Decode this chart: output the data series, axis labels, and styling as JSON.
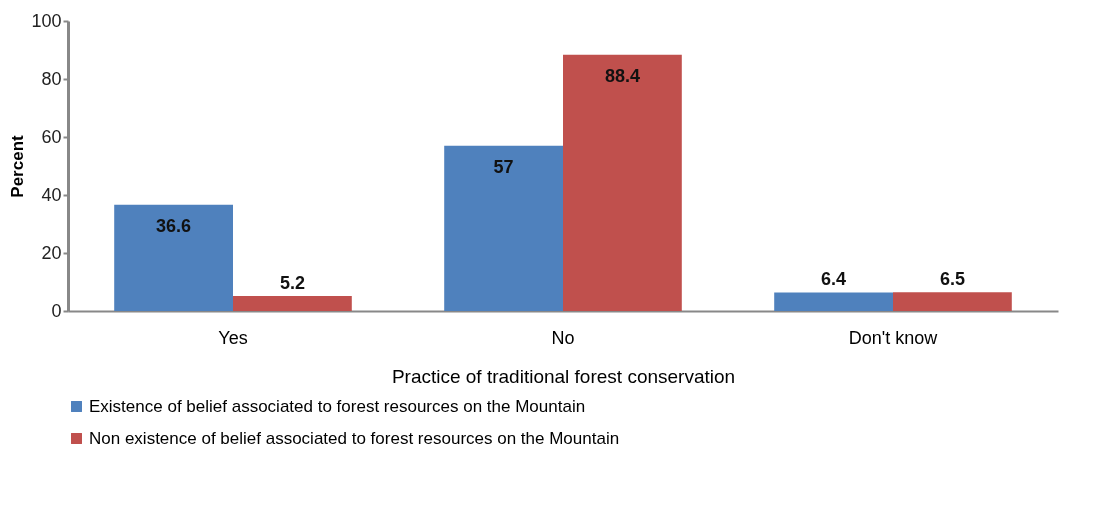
{
  "chart_data": {
    "type": "bar",
    "xlabel": "Practice of traditional forest conservation",
    "ylabel": "Percent",
    "categories": [
      "Yes",
      "No",
      "Don't know"
    ],
    "series": [
      {
        "name": "Existence of belief associated to forest resources on the Mountain",
        "color": "#4f81bd",
        "values": [
          36.6,
          57,
          6.4
        ]
      },
      {
        "name": "Non existence of belief associated to forest resources on the Mountain",
        "color": "#c0504d",
        "values": [
          5.2,
          88.4,
          6.5
        ]
      }
    ],
    "ylim": [
      0,
      100
    ],
    "yticks": [
      0,
      20,
      40,
      60,
      80,
      100
    ],
    "grid": false,
    "legend": "bottom",
    "data_labels": true
  }
}
